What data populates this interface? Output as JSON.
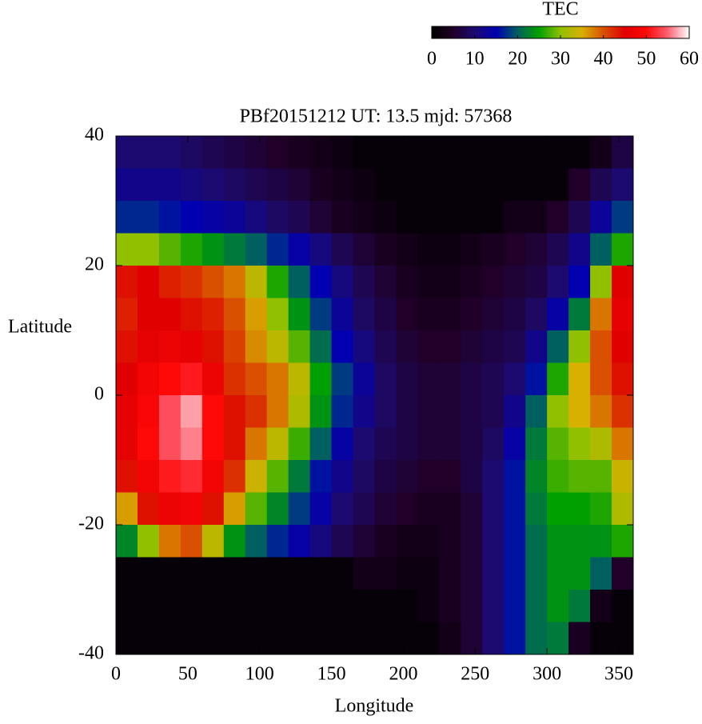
{
  "chart_data": {
    "type": "heatmap",
    "title": "PBf20151212  UT: 13.5  mjd: 57368",
    "x_label": "Longitude",
    "y_label": "Latitude",
    "colorbar_label": "TEC",
    "xlim": [
      0,
      360
    ],
    "xticks": [
      0,
      50,
      100,
      150,
      200,
      250,
      300,
      350
    ],
    "ylim": [
      -40,
      40
    ],
    "yticks": [
      -40,
      -20,
      0,
      20,
      40
    ],
    "zlim": [
      0,
      60
    ],
    "zticks": [
      0,
      10,
      20,
      30,
      40,
      50,
      60
    ],
    "colormap": [
      "#000000",
      "#200028",
      "#1c0a70",
      "#0000b0",
      "#006060",
      "#00a000",
      "#90c000",
      "#d8b000",
      "#d85000",
      "#e00000",
      "#ff0808",
      "#ff6070",
      "#ffffff"
    ],
    "x": [
      7.5,
      22.5,
      37.5,
      52.5,
      67.5,
      82.5,
      97.5,
      112.5,
      127.5,
      142.5,
      157.5,
      172.5,
      187.5,
      202.5,
      217.5,
      232.5,
      247.5,
      262.5,
      277.5,
      292.5,
      307.5,
      322.5,
      337.5,
      352.5
    ],
    "y": [
      37.5,
      32.5,
      27.5,
      22.5,
      17.5,
      12.5,
      7.5,
      2.5,
      -2.5,
      -7.5,
      -12.5,
      -17.5,
      -22.5,
      -27.5,
      -32.5,
      -37.5
    ],
    "z": [
      [
        10,
        10,
        10,
        9,
        8,
        7,
        6,
        5,
        4,
        3,
        2,
        1,
        1,
        1,
        1,
        1,
        1,
        1,
        1,
        1,
        1,
        1,
        3,
        7
      ],
      [
        12,
        12,
        12,
        11,
        10,
        9,
        8,
        7,
        6,
        4,
        3,
        2,
        1,
        1,
        1,
        1,
        1,
        1,
        1,
        1,
        1,
        5,
        8,
        10
      ],
      [
        17,
        17,
        16,
        15,
        14,
        13,
        11,
        9,
        8,
        6,
        4,
        3,
        2,
        1,
        1,
        1,
        1,
        1,
        3,
        3,
        5,
        8,
        13,
        18
      ],
      [
        30,
        30,
        28,
        26,
        24,
        22,
        20,
        17,
        14,
        11,
        8,
        6,
        4,
        3,
        2,
        2,
        3,
        4,
        5,
        6,
        8,
        12,
        20,
        26
      ],
      [
        44,
        45,
        43,
        42,
        40,
        38,
        33,
        26,
        20,
        15,
        11,
        8,
        6,
        4,
        3,
        3,
        4,
        5,
        6,
        7,
        10,
        15,
        30,
        45
      ],
      [
        43,
        45,
        45,
        44,
        43,
        40,
        36,
        30,
        24,
        18,
        13,
        9,
        7,
        5,
        4,
        4,
        5,
        6,
        7,
        9,
        14,
        22,
        38,
        46
      ],
      [
        44,
        46,
        47,
        46,
        44,
        41,
        37,
        33,
        28,
        21,
        15,
        11,
        8,
        6,
        5,
        5,
        6,
        7,
        8,
        12,
        20,
        30,
        40,
        45
      ],
      [
        45,
        48,
        50,
        51,
        47,
        42,
        40,
        38,
        33,
        25,
        18,
        13,
        9,
        7,
        6,
        6,
        7,
        8,
        10,
        16,
        26,
        35,
        40,
        44
      ],
      [
        46,
        49,
        54,
        57,
        50,
        44,
        42,
        38,
        32,
        24,
        17,
        12,
        9,
        7,
        6,
        6,
        7,
        8,
        12,
        20,
        30,
        35,
        38,
        42
      ],
      [
        46,
        50,
        54,
        56,
        50,
        44,
        38,
        33,
        27,
        20,
        14,
        10,
        8,
        7,
        6,
        6,
        7,
        9,
        14,
        22,
        28,
        30,
        32,
        38
      ],
      [
        44,
        48,
        51,
        52,
        48,
        42,
        34,
        28,
        22,
        16,
        12,
        9,
        7,
        6,
        5,
        5,
        7,
        10,
        16,
        23,
        27,
        28,
        28,
        34
      ],
      [
        36,
        44,
        47,
        48,
        44,
        36,
        28,
        23,
        18,
        14,
        10,
        8,
        6,
        5,
        4,
        4,
        6,
        10,
        16,
        22,
        25,
        25,
        26,
        32
      ],
      [
        23,
        30,
        38,
        40,
        33,
        24,
        20,
        17,
        14,
        11,
        8,
        6,
        4,
        3,
        3,
        4,
        6,
        10,
        16,
        21,
        24,
        24,
        24,
        26
      ],
      [
        1,
        1,
        1,
        1,
        1,
        1,
        1,
        1,
        1,
        1,
        1,
        3,
        3,
        2,
        2,
        4,
        6,
        10,
        16,
        21,
        24,
        24,
        20,
        5
      ],
      [
        1,
        1,
        1,
        1,
        1,
        1,
        1,
        1,
        1,
        1,
        1,
        1,
        1,
        1,
        2,
        4,
        6,
        10,
        16,
        21,
        24,
        22,
        3,
        1
      ],
      [
        1,
        1,
        1,
        1,
        1,
        1,
        1,
        1,
        1,
        1,
        1,
        1,
        1,
        1,
        1,
        3,
        6,
        10,
        16,
        21,
        22,
        4,
        1,
        1
      ]
    ]
  }
}
